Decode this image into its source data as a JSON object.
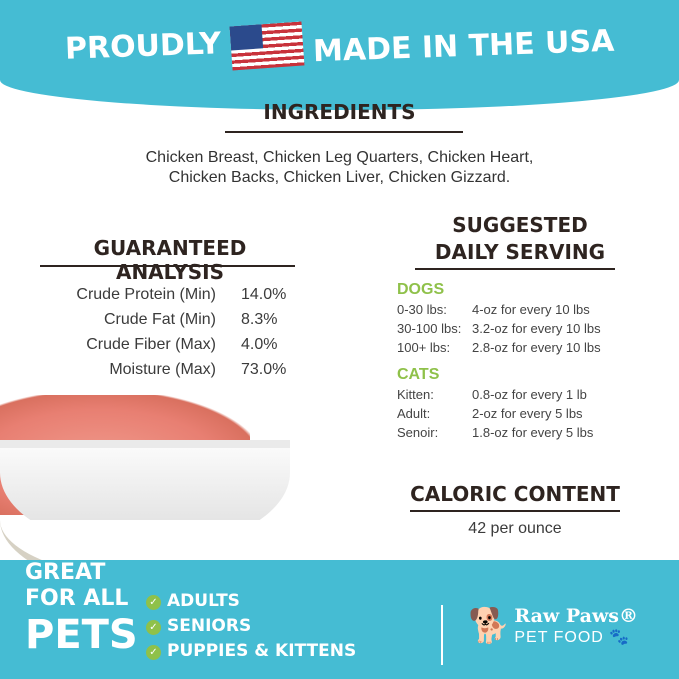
{
  "banner": {
    "left": "PROUDLY",
    "right": "MADE IN THE USA",
    "flag_icon": "us-flag-icon"
  },
  "ingredients": {
    "title": "INGREDIENTS",
    "line1": "Chicken Breast, Chicken Leg Quarters, Chicken Heart,",
    "line2": "Chicken Backs, Chicken Liver, Chicken Gizzard."
  },
  "analysis": {
    "title": "GUARANTEED ANALYSIS",
    "rows": [
      {
        "name": "Crude Protein (Min)",
        "value": "14.0%"
      },
      {
        "name": "Crude Fat (Min)",
        "value": "8.3%"
      },
      {
        "name": "Crude Fiber (Max)",
        "value": "4.0%"
      },
      {
        "name": "Moisture (Max)",
        "value": "73.0%"
      }
    ]
  },
  "serving": {
    "title1": "SUGGESTED",
    "title2": "DAILY SERVING",
    "dogs": {
      "label": "DOGS",
      "rows": [
        {
          "weight": "0-30 lbs:",
          "amount": "4-oz for every 10 lbs"
        },
        {
          "weight": "30-100 lbs:",
          "amount": "3.2-oz for every 10 lbs"
        },
        {
          "weight": "100+ lbs:",
          "amount": "2.8-oz for every 10 lbs"
        }
      ]
    },
    "cats": {
      "label": "CATS",
      "rows": [
        {
          "weight": "Kitten:",
          "amount": "0.8-oz for every 1 lb"
        },
        {
          "weight": "Adult:",
          "amount": "2-oz for every 5 lbs"
        },
        {
          "weight": "Senoir:",
          "amount": "1.8-oz for every 5 lbs"
        }
      ]
    }
  },
  "caloric": {
    "title": "CALORIC CONTENT",
    "value": "42 per ounce"
  },
  "footer": {
    "great": "GREAT",
    "for_all": "FOR ALL",
    "pets": "PETS",
    "checks": [
      "ADULTS",
      "SENIORS",
      "PUPPIES & KITTENS"
    ],
    "brand": "Raw Paws®",
    "brand_sub": "PET FOOD"
  },
  "colors": {
    "teal": "#45bcd3",
    "green": "#8fc14a",
    "heading": "#2e2420"
  }
}
